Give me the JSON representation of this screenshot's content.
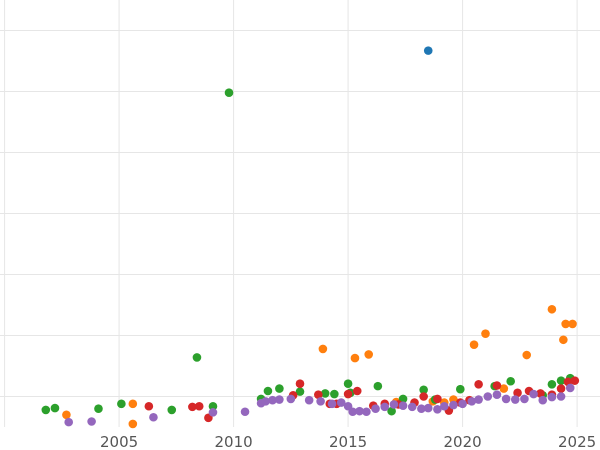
{
  "chart_data": {
    "type": "scatter",
    "title": "",
    "xlabel": "",
    "ylabel": "",
    "xlim": [
      1999.8,
      2026
    ],
    "ylim": [
      -0.5,
      6.5
    ],
    "x_ticks": [
      2005,
      2010,
      2015,
      2020,
      2025
    ],
    "grid": true,
    "legend": "none",
    "series": [
      {
        "color": "#1f77b4",
        "points": [
          [
            2018.5,
            5.67
          ]
        ]
      },
      {
        "color": "#ff7f0e",
        "points": [
          [
            2002.7,
            -0.3
          ],
          [
            2005.6,
            -0.12
          ],
          [
            2005.6,
            -0.45
          ],
          [
            2013.9,
            0.78
          ],
          [
            2015.3,
            0.63
          ],
          [
            2015.9,
            0.69
          ],
          [
            2017.1,
            -0.09
          ],
          [
            2018.7,
            -0.08
          ],
          [
            2019.2,
            -0.1
          ],
          [
            2020.5,
            0.85
          ],
          [
            2021.0,
            1.03
          ],
          [
            2021.8,
            0.13
          ],
          [
            2022.8,
            0.68
          ],
          [
            2023.9,
            1.43
          ],
          [
            2024.4,
            0.93
          ],
          [
            2024.5,
            1.19
          ],
          [
            2024.8,
            1.19
          ],
          [
            2019.6,
            -0.05
          ]
        ]
      },
      {
        "color": "#2ca02c",
        "points": [
          [
            2001.8,
            -0.22
          ],
          [
            2002.2,
            -0.19
          ],
          [
            2004.1,
            -0.2
          ],
          [
            2005.1,
            -0.12
          ],
          [
            2007.3,
            -0.22
          ],
          [
            2008.4,
            0.64
          ],
          [
            2009.1,
            -0.16
          ],
          [
            2009.8,
            4.98
          ],
          [
            2011.2,
            -0.04
          ],
          [
            2011.5,
            0.09
          ],
          [
            2012.0,
            0.13
          ],
          [
            2012.9,
            0.08
          ],
          [
            2014.0,
            0.05
          ],
          [
            2014.4,
            0.04
          ],
          [
            2015.1,
            0.06
          ],
          [
            2016.3,
            0.17
          ],
          [
            2016.9,
            -0.24
          ],
          [
            2017.4,
            -0.04
          ],
          [
            2018.3,
            0.11
          ],
          [
            2018.8,
            -0.05
          ],
          [
            2019.9,
            0.12
          ],
          [
            2021.4,
            0.17
          ],
          [
            2022.1,
            0.25
          ],
          [
            2023.5,
            0.02
          ],
          [
            2023.9,
            0.2
          ],
          [
            2024.3,
            0.26
          ],
          [
            2024.7,
            0.3
          ],
          [
            2015.0,
            0.21
          ]
        ]
      },
      {
        "color": "#d62728",
        "points": [
          [
            2006.3,
            -0.16
          ],
          [
            2008.2,
            -0.17
          ],
          [
            2008.5,
            -0.16
          ],
          [
            2008.9,
            -0.35
          ],
          [
            2012.6,
            0.02
          ],
          [
            2012.9,
            0.21
          ],
          [
            2013.7,
            0.03
          ],
          [
            2014.2,
            -0.12
          ],
          [
            2014.5,
            -0.12
          ],
          [
            2015.0,
            0.04
          ],
          [
            2015.4,
            0.09
          ],
          [
            2016.1,
            -0.15
          ],
          [
            2016.6,
            -0.12
          ],
          [
            2017.2,
            -0.13
          ],
          [
            2017.9,
            -0.1
          ],
          [
            2018.3,
            0.0
          ],
          [
            2018.9,
            -0.04
          ],
          [
            2019.4,
            -0.23
          ],
          [
            2020.3,
            -0.06
          ],
          [
            2020.7,
            0.2
          ],
          [
            2021.5,
            0.18
          ],
          [
            2022.4,
            0.06
          ],
          [
            2022.9,
            0.09
          ],
          [
            2023.4,
            0.05
          ],
          [
            2023.9,
            0.03
          ],
          [
            2024.3,
            0.13
          ],
          [
            2024.6,
            0.24
          ],
          [
            2024.9,
            0.26
          ],
          [
            2019.9,
            -0.1
          ]
        ]
      },
      {
        "color": "#9467bd",
        "points": [
          [
            2002.8,
            -0.42
          ],
          [
            2003.8,
            -0.41
          ],
          [
            2006.5,
            -0.34
          ],
          [
            2009.1,
            -0.26
          ],
          [
            2010.5,
            -0.25
          ],
          [
            2011.2,
            -0.11
          ],
          [
            2011.4,
            -0.08
          ],
          [
            2011.7,
            -0.06
          ],
          [
            2012.0,
            -0.05
          ],
          [
            2012.5,
            -0.04
          ],
          [
            2013.3,
            -0.06
          ],
          [
            2013.8,
            -0.08
          ],
          [
            2014.3,
            -0.12
          ],
          [
            2014.7,
            -0.1
          ],
          [
            2015.0,
            -0.16
          ],
          [
            2015.2,
            -0.25
          ],
          [
            2015.5,
            -0.24
          ],
          [
            2015.8,
            -0.25
          ],
          [
            2016.2,
            -0.2
          ],
          [
            2016.6,
            -0.17
          ],
          [
            2017.0,
            -0.13
          ],
          [
            2017.4,
            -0.15
          ],
          [
            2017.8,
            -0.17
          ],
          [
            2018.2,
            -0.2
          ],
          [
            2018.5,
            -0.19
          ],
          [
            2018.9,
            -0.21
          ],
          [
            2019.2,
            -0.16
          ],
          [
            2019.6,
            -0.14
          ],
          [
            2020.0,
            -0.12
          ],
          [
            2020.4,
            -0.08
          ],
          [
            2020.7,
            -0.05
          ],
          [
            2021.1,
            0.0
          ],
          [
            2021.5,
            0.03
          ],
          [
            2021.9,
            -0.04
          ],
          [
            2022.3,
            -0.05
          ],
          [
            2022.7,
            -0.04
          ],
          [
            2023.1,
            0.04
          ],
          [
            2023.5,
            -0.06
          ],
          [
            2023.9,
            -0.01
          ],
          [
            2024.3,
            0.0
          ],
          [
            2024.7,
            0.14
          ]
        ]
      }
    ]
  }
}
